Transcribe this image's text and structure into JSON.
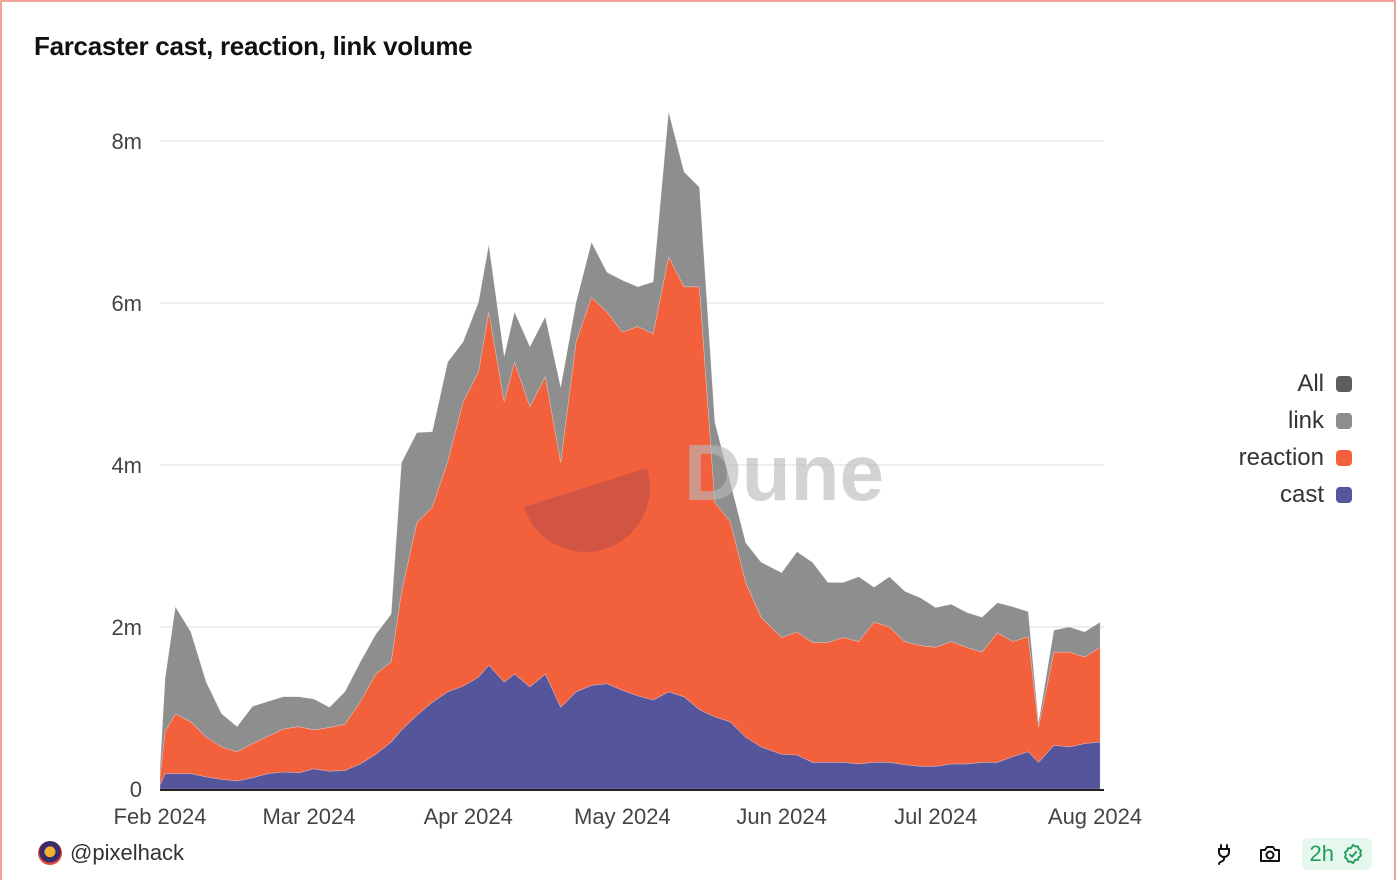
{
  "title": "Farcaster cast, reaction, link volume",
  "user": "@pixelhack",
  "refresh_badge": "2h",
  "watermark": "Dune",
  "icons": {
    "embed": "plug-icon",
    "screenshot": "camera-icon",
    "verified": "check-badge-icon"
  },
  "legend": [
    {
      "label": "All",
      "color": "#5d5d62"
    },
    {
      "label": "link",
      "color": "#8e8e8e"
    },
    {
      "label": "reaction",
      "color": "#f2603c"
    },
    {
      "label": "cast",
      "color": "#55559b"
    }
  ],
  "chart_data": {
    "type": "area",
    "stacked": true,
    "title": "Farcaster cast, reaction, link volume",
    "xlabel": "",
    "ylabel": "",
    "ylim": [
      0,
      8.5
    ],
    "y_unit": "m",
    "y_ticks": [
      {
        "value": 0,
        "label": "0"
      },
      {
        "value": 2,
        "label": "2m"
      },
      {
        "value": 4,
        "label": "4m"
      },
      {
        "value": 6,
        "label": "6m"
      },
      {
        "value": 8,
        "label": "8m"
      }
    ],
    "x_ticks": [
      {
        "date": "2024-02-01",
        "label": "Feb 2024"
      },
      {
        "date": "2024-03-01",
        "label": "Mar 2024"
      },
      {
        "date": "2024-04-01",
        "label": "Apr 2024"
      },
      {
        "date": "2024-05-01",
        "label": "May 2024"
      },
      {
        "date": "2024-06-01",
        "label": "Jun 2024"
      },
      {
        "date": "2024-07-01",
        "label": "Jul 2024"
      },
      {
        "date": "2024-08-01",
        "label": "Aug 2024"
      }
    ],
    "grid": true,
    "legend_position": "right",
    "x": [
      "2024-02-01",
      "2024-02-02",
      "2024-02-04",
      "2024-02-07",
      "2024-02-10",
      "2024-02-13",
      "2024-02-16",
      "2024-02-19",
      "2024-02-22",
      "2024-02-25",
      "2024-02-28",
      "2024-03-02",
      "2024-03-05",
      "2024-03-08",
      "2024-03-11",
      "2024-03-14",
      "2024-03-17",
      "2024-03-19",
      "2024-03-22",
      "2024-03-25",
      "2024-03-28",
      "2024-03-31",
      "2024-04-03",
      "2024-04-05",
      "2024-04-08",
      "2024-04-10",
      "2024-04-13",
      "2024-04-16",
      "2024-04-19",
      "2024-04-22",
      "2024-04-25",
      "2024-04-28",
      "2024-05-01",
      "2024-05-04",
      "2024-05-07",
      "2024-05-10",
      "2024-05-13",
      "2024-05-16",
      "2024-05-19",
      "2024-05-22",
      "2024-05-25",
      "2024-05-28",
      "2024-06-01",
      "2024-06-04",
      "2024-06-07",
      "2024-06-10",
      "2024-06-13",
      "2024-06-16",
      "2024-06-19",
      "2024-06-22",
      "2024-06-25",
      "2024-06-28",
      "2024-07-01",
      "2024-07-04",
      "2024-07-07",
      "2024-07-10",
      "2024-07-13",
      "2024-07-16",
      "2024-07-19",
      "2024-07-21",
      "2024-07-24",
      "2024-07-27",
      "2024-07-30",
      "2024-08-02"
    ],
    "series": [
      {
        "name": "cast",
        "color": "#55559b",
        "values": [
          0.05,
          0.19,
          0.19,
          0.19,
          0.15,
          0.12,
          0.1,
          0.14,
          0.19,
          0.21,
          0.2,
          0.25,
          0.22,
          0.23,
          0.31,
          0.43,
          0.58,
          0.73,
          0.91,
          1.07,
          1.2,
          1.27,
          1.38,
          1.53,
          1.32,
          1.42,
          1.26,
          1.42,
          1.01,
          1.2,
          1.28,
          1.3,
          1.22,
          1.15,
          1.1,
          1.2,
          1.14,
          0.98,
          0.89,
          0.83,
          0.64,
          0.52,
          0.43,
          0.42,
          0.33,
          0.33,
          0.33,
          0.31,
          0.33,
          0.33,
          0.3,
          0.28,
          0.28,
          0.31,
          0.31,
          0.33,
          0.33,
          0.4,
          0.46,
          0.33,
          0.54,
          0.52,
          0.56,
          0.58
        ]
      },
      {
        "name": "reaction",
        "color": "#f2603c",
        "values": [
          0.1,
          0.52,
          0.74,
          0.64,
          0.49,
          0.4,
          0.36,
          0.42,
          0.46,
          0.53,
          0.57,
          0.48,
          0.54,
          0.57,
          0.77,
          0.99,
          0.99,
          1.7,
          2.38,
          2.41,
          2.84,
          3.51,
          3.77,
          4.36,
          3.46,
          3.85,
          3.46,
          3.67,
          3.02,
          4.32,
          4.79,
          4.59,
          4.42,
          4.56,
          4.52,
          5.37,
          5.06,
          5.22,
          2.65,
          2.47,
          1.91,
          1.6,
          1.44,
          1.52,
          1.48,
          1.48,
          1.54,
          1.51,
          1.73,
          1.67,
          1.52,
          1.49,
          1.47,
          1.51,
          1.44,
          1.36,
          1.6,
          1.42,
          1.42,
          0.43,
          1.15,
          1.17,
          1.07,
          1.17
        ]
      },
      {
        "name": "link",
        "color": "#8e8e8e",
        "values": [
          0.1,
          0.65,
          1.32,
          1.11,
          0.68,
          0.41,
          0.31,
          0.46,
          0.43,
          0.4,
          0.37,
          0.38,
          0.25,
          0.4,
          0.49,
          0.49,
          0.59,
          1.6,
          1.11,
          0.93,
          1.23,
          0.74,
          0.86,
          0.83,
          0.56,
          0.62,
          0.74,
          0.74,
          0.93,
          0.49,
          0.68,
          0.49,
          0.64,
          0.49,
          0.64,
          1.79,
          1.42,
          1.23,
          0.99,
          0.49,
          0.49,
          0.68,
          0.8,
          0.99,
          0.99,
          0.74,
          0.68,
          0.8,
          0.43,
          0.62,
          0.62,
          0.59,
          0.49,
          0.46,
          0.43,
          0.43,
          0.37,
          0.43,
          0.31,
          0.06,
          0.27,
          0.31,
          0.31,
          0.31
        ]
      }
    ]
  }
}
